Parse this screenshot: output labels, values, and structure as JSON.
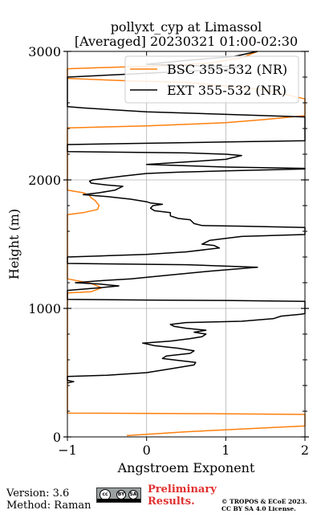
{
  "chart_data": {
    "type": "line",
    "title": "pollyxt_cyp at Limassol",
    "subtitle": "[Averaged] 20230321 01:00-02:30",
    "xlabel": "Angstroem Exponent",
    "ylabel": "Height (m)",
    "xlim": [
      -1,
      2
    ],
    "ylim": [
      0,
      3000
    ],
    "x_ticks": [
      -1,
      0,
      1,
      2
    ],
    "y_ticks": [
      0,
      1000,
      2000,
      3000
    ],
    "x_tick_labels": [
      "−1",
      "0",
      "1",
      "2"
    ],
    "y_tick_labels": [
      "0",
      "1000",
      "2000",
      "3000"
    ],
    "grid": true,
    "legend_position": "top-right",
    "series": [
      {
        "name": "BSC 355-532 (NR)",
        "color": "#ff7f0e",
        "points": [
          [
            -0.25,
            10
          ],
          [
            0.5,
            40
          ],
          [
            1.5,
            70
          ],
          [
            2.0,
            85
          ],
          [
            2.0,
            175
          ],
          [
            1.0,
            180
          ],
          [
            0.0,
            183
          ],
          [
            -1.0,
            185
          ],
          [
            -1.0,
            1120
          ],
          [
            -0.7,
            1130
          ],
          [
            -0.57,
            1160
          ],
          [
            -0.7,
            1195
          ],
          [
            -1.0,
            1230
          ],
          [
            -1.0,
            1730
          ],
          [
            -0.8,
            1745
          ],
          [
            -0.62,
            1770
          ],
          [
            -0.6,
            1800
          ],
          [
            -0.65,
            1840
          ],
          [
            -0.7,
            1860
          ],
          [
            -0.72,
            1880
          ],
          [
            -0.8,
            1900
          ],
          [
            -0.9,
            1910
          ],
          [
            -1.0,
            1920
          ],
          [
            -1.0,
            2405
          ],
          [
            0.0,
            2420
          ],
          [
            1.0,
            2445
          ],
          [
            1.5,
            2470
          ],
          [
            2.0,
            2500
          ],
          [
            2.0,
            2630
          ],
          [
            1.5,
            2700
          ],
          [
            0.5,
            2760
          ],
          [
            -0.2,
            2770
          ],
          [
            -1.0,
            2790
          ],
          [
            -1.0,
            2865
          ],
          [
            -0.5,
            2875
          ],
          [
            0.3,
            2890
          ],
          [
            0.8,
            2910
          ],
          [
            1.2,
            2950
          ],
          [
            1.4,
            3000
          ]
        ]
      },
      {
        "name": "EXT 355-532 (NR)",
        "color": "#000000",
        "points": [
          [
            -1.0,
            420
          ],
          [
            -0.92,
            430
          ],
          [
            -1.0,
            440
          ],
          [
            -1.0,
            470
          ],
          [
            -0.5,
            480
          ],
          [
            0.0,
            500
          ],
          [
            0.3,
            530
          ],
          [
            0.6,
            560
          ],
          [
            0.62,
            580
          ],
          [
            0.4,
            595
          ],
          [
            0.2,
            610
          ],
          [
            0.25,
            630
          ],
          [
            0.55,
            650
          ],
          [
            0.6,
            670
          ],
          [
            0.4,
            690
          ],
          [
            0.1,
            710
          ],
          [
            -0.05,
            730
          ],
          [
            0.3,
            745
          ],
          [
            0.55,
            765
          ],
          [
            0.7,
            780
          ],
          [
            0.75,
            800
          ],
          [
            0.6,
            815
          ],
          [
            0.75,
            830
          ],
          [
            0.5,
            845
          ],
          [
            0.35,
            860
          ],
          [
            0.3,
            875
          ],
          [
            0.5,
            890
          ],
          [
            1.2,
            900
          ],
          [
            1.6,
            920
          ],
          [
            1.7,
            940
          ],
          [
            1.95,
            955
          ],
          [
            2.0,
            960
          ],
          [
            2.0,
            1055
          ],
          [
            1.0,
            1062
          ],
          [
            0.0,
            1065
          ],
          [
            -1.0,
            1070
          ],
          [
            -1.0,
            1140
          ],
          [
            -0.8,
            1150
          ],
          [
            -0.6,
            1160
          ],
          [
            -0.35,
            1175
          ],
          [
            -0.6,
            1190
          ],
          [
            -0.9,
            1200
          ],
          [
            -0.6,
            1215
          ],
          [
            -0.2,
            1230
          ],
          [
            0.3,
            1260
          ],
          [
            0.8,
            1290
          ],
          [
            1.4,
            1320
          ],
          [
            0.5,
            1340
          ],
          [
            -1.0,
            1350
          ],
          [
            -1.0,
            1400
          ],
          [
            -0.5,
            1410
          ],
          [
            0.0,
            1420
          ],
          [
            0.5,
            1440
          ],
          [
            0.92,
            1470
          ],
          [
            0.85,
            1490
          ],
          [
            0.7,
            1500
          ],
          [
            0.75,
            1515
          ],
          [
            0.8,
            1530
          ],
          [
            1.2,
            1560
          ],
          [
            2.0,
            1575
          ],
          [
            2.0,
            1630
          ],
          [
            1.2,
            1640
          ],
          [
            0.7,
            1645
          ],
          [
            0.6,
            1660
          ],
          [
            0.55,
            1690
          ],
          [
            0.4,
            1700
          ],
          [
            0.3,
            1720
          ],
          [
            0.3,
            1745
          ],
          [
            0.1,
            1760
          ],
          [
            0.05,
            1780
          ],
          [
            0.08,
            1800
          ],
          [
            0.2,
            1810
          ],
          [
            0.05,
            1820
          ],
          [
            0.0,
            1830
          ],
          [
            -0.2,
            1850
          ],
          [
            -0.5,
            1870
          ],
          [
            -0.8,
            1885
          ],
          [
            -0.6,
            1900
          ],
          [
            -0.4,
            1920
          ],
          [
            -0.3,
            1950
          ],
          [
            -0.5,
            1960
          ],
          [
            -0.7,
            1975
          ],
          [
            -0.72,
            1990
          ],
          [
            -0.68,
            2000
          ],
          [
            -0.55,
            2010
          ],
          [
            -0.3,
            2030
          ],
          [
            0.0,
            2050
          ],
          [
            0.4,
            2060
          ],
          [
            1.0,
            2070
          ],
          [
            2.0,
            2085
          ],
          [
            2.0,
            2090
          ],
          [
            1.0,
            2100
          ],
          [
            0.0,
            2120
          ],
          [
            0.5,
            2140
          ],
          [
            1.0,
            2160
          ],
          [
            1.2,
            2190
          ],
          [
            1.0,
            2200
          ],
          [
            0.5,
            2210
          ],
          [
            -1.0,
            2220
          ],
          [
            -1.0,
            2275
          ],
          [
            0.0,
            2285
          ],
          [
            1.0,
            2295
          ],
          [
            2.0,
            2305
          ],
          [
            2.0,
            2490
          ],
          [
            1.0,
            2510
          ],
          [
            0.0,
            2530
          ],
          [
            -0.8,
            2560
          ],
          [
            -1.0,
            2570
          ],
          [
            -1.0,
            2800
          ],
          [
            0.0,
            2830
          ],
          [
            1.0,
            2860
          ],
          [
            1.2,
            2880
          ],
          [
            0.5,
            2890
          ],
          [
            0.0,
            2900
          ],
          [
            0.5,
            2930
          ],
          [
            1.1,
            2960
          ],
          [
            1.4,
            3000
          ]
        ]
      }
    ]
  },
  "footer": {
    "version": "Version: 3.6",
    "method": "Method: Raman",
    "preliminary_line1": "Preliminary",
    "preliminary_line2": "Results.",
    "copyright_line1": "© TROPOS & ECoE 2023.",
    "copyright_line2": "CC BY SA 4.0 License."
  },
  "badge": {
    "cc": "cc",
    "by": "BY",
    "sa": "SA"
  }
}
